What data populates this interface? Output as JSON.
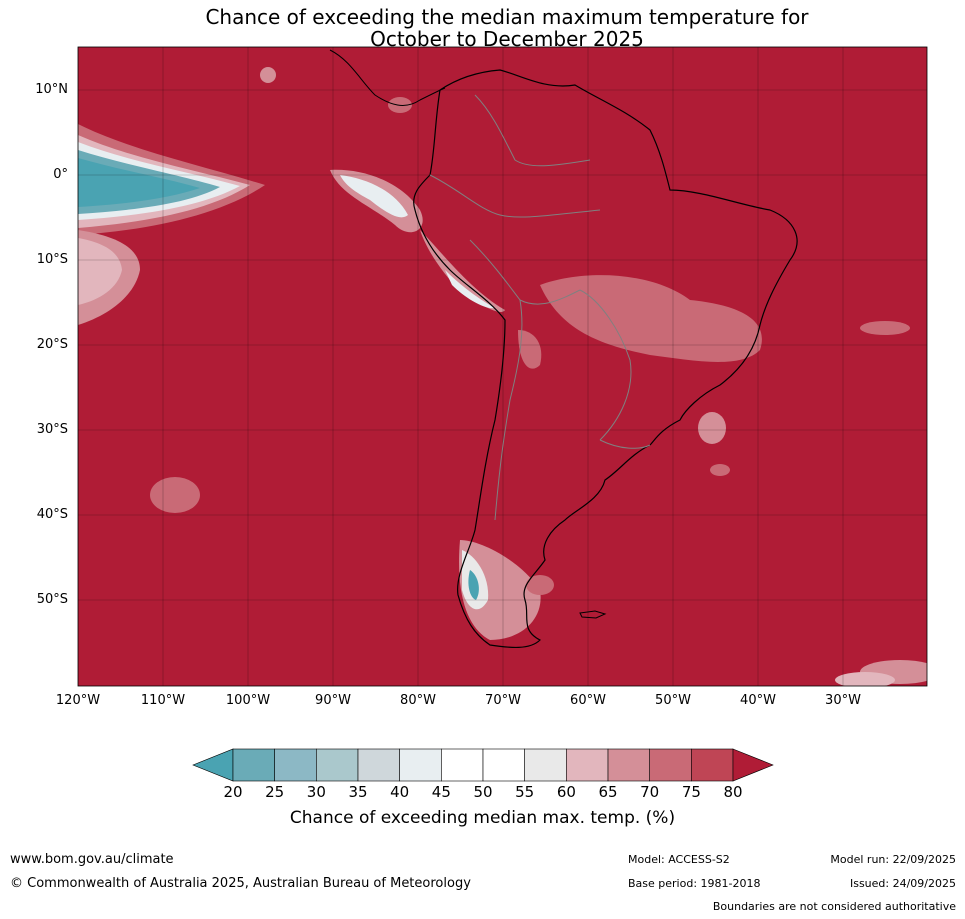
{
  "title": {
    "line1": "Chance of exceeding the median maximum temperature for",
    "line2": "October to December 2025"
  },
  "axes": {
    "lat_labels": [
      "10°N",
      "0°",
      "10°S",
      "20°S",
      "30°S",
      "40°S",
      "50°S"
    ],
    "lon_labels": [
      "120°W",
      "110°W",
      "100°W",
      "90°W",
      "80°W",
      "70°W",
      "60°W",
      "50°W",
      "40°W",
      "30°W"
    ]
  },
  "colorbar": {
    "ticks": [
      "20",
      "25",
      "30",
      "35",
      "40",
      "45",
      "50",
      "55",
      "60",
      "65",
      "70",
      "75",
      "80"
    ],
    "colors": [
      "#6aabb7",
      "#8cb8c5",
      "#aac8cc",
      "#cfd7db",
      "#e8eef1",
      "#ffffff",
      "#ffffff",
      "#e9e9e9",
      "#e2b6bd",
      "#d48f98",
      "#c96a76",
      "#bf4555"
    ],
    "under_color": "#4aa3b2",
    "over_color": "#b01c36",
    "label": "Chance of exceeding median max. temp. (%)"
  },
  "footer": {
    "website": "www.bom.gov.au/climate",
    "copyright": "© Commonwealth of Australia 2025, Australian Bureau of Meteorology",
    "model": "Model: ACCESS-S2",
    "model_run": "Model run: 22/09/2025",
    "base_period": "Base period: 1981-2018",
    "issued": "Issued: 24/09/2025",
    "disclaimer": "Boundaries are not considered authoritative"
  }
}
